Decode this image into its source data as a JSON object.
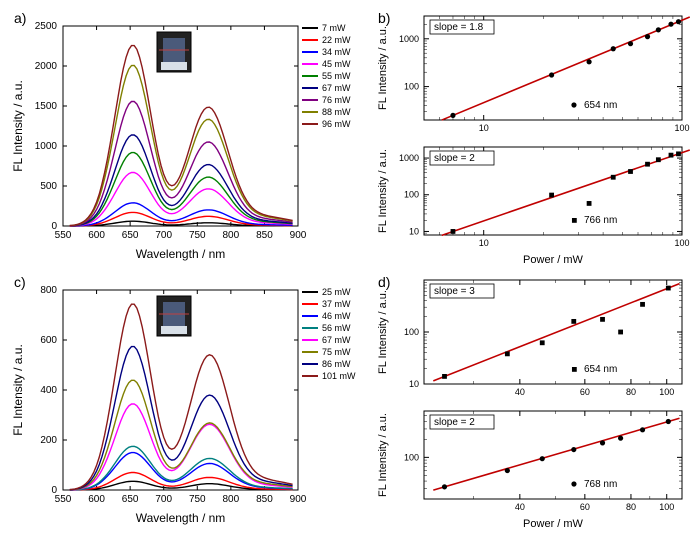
{
  "panels": {
    "a": {
      "label": "a)",
      "type": "line-spectrum",
      "xlim": [
        550,
        900
      ],
      "xtick_step": 50,
      "ylim": [
        0,
        2500
      ],
      "ytick_step": 500,
      "xlabel": "Wavelength / nm",
      "ylabel": "FL Intensity / a.u.",
      "background_color": "#ffffff",
      "axis_color": "#000000",
      "label_fontsize": 12,
      "tick_fontsize": 10,
      "inset_image": true,
      "series": [
        {
          "name": "7 mW",
          "color": "#000000",
          "peak1": 60,
          "peak2": 40
        },
        {
          "name": "22 mW",
          "color": "#ff0000",
          "peak1": 170,
          "peak2": 120
        },
        {
          "name": "34 mW",
          "color": "#0000ff",
          "peak1": 290,
          "peak2": 200
        },
        {
          "name": "45 mW",
          "color": "#ff00ff",
          "peak1": 670,
          "peak2": 460
        },
        {
          "name": "55 mW",
          "color": "#008000",
          "peak1": 920,
          "peak2": 605
        },
        {
          "name": "67 mW",
          "color": "#000080",
          "peak1": 1140,
          "peak2": 760
        },
        {
          "name": "76 mW",
          "color": "#800080",
          "peak1": 1560,
          "peak2": 1040
        },
        {
          "name": "88 mW",
          "color": "#808000",
          "peak1": 2010,
          "peak2": 1320
        },
        {
          "name": "96 mW",
          "color": "#8b1a1a",
          "peak1": 2260,
          "peak2": 1470
        }
      ],
      "peak1_x": 654,
      "peak2_x": 766
    },
    "b": {
      "label": "b)",
      "type": "loglog-pair",
      "xlabel": "Power / mW",
      "ylabel": "FL Intensity / a.u.",
      "xlim": [
        5,
        100
      ],
      "plots": [
        {
          "slope_label": "slope = 1.8",
          "wavelength_label": "654 nm",
          "marker": "circle",
          "ylim": [
            20,
            3000
          ],
          "yticks": [
            100,
            1000
          ],
          "xticks": [
            10,
            100
          ],
          "fit_color": "#c00000",
          "marker_color": "#000000",
          "points": [
            {
              "x": 7,
              "y": 25
            },
            {
              "x": 22,
              "y": 175
            },
            {
              "x": 34,
              "y": 330
            },
            {
              "x": 45,
              "y": 620
            },
            {
              "x": 55,
              "y": 790
            },
            {
              "x": 67,
              "y": 1110
            },
            {
              "x": 76,
              "y": 1540
            },
            {
              "x": 88,
              "y": 2020
            },
            {
              "x": 96,
              "y": 2280
            }
          ]
        },
        {
          "slope_label": "slope = 2",
          "wavelength_label": "766 nm",
          "marker": "square",
          "ylim": [
            8,
            2000
          ],
          "yticks": [
            10,
            100,
            1000
          ],
          "xticks": [
            10,
            100
          ],
          "fit_color": "#c00000",
          "marker_color": "#000000",
          "points": [
            {
              "x": 7,
              "y": 10
            },
            {
              "x": 22,
              "y": 98
            },
            {
              "x": 34,
              "y": 58
            },
            {
              "x": 45,
              "y": 300
            },
            {
              "x": 55,
              "y": 430
            },
            {
              "x": 67,
              "y": 680
            },
            {
              "x": 76,
              "y": 900
            },
            {
              "x": 88,
              "y": 1200
            },
            {
              "x": 96,
              "y": 1300
            }
          ]
        }
      ]
    },
    "c": {
      "label": "c)",
      "type": "line-spectrum",
      "xlim": [
        550,
        900
      ],
      "xtick_step": 50,
      "ylim": [
        0,
        800
      ],
      "ytick_step": 200,
      "xlabel": "Wavelength / nm",
      "ylabel": "FL Intensity / a.u.",
      "background_color": "#ffffff",
      "axis_color": "#000000",
      "label_fontsize": 12,
      "tick_fontsize": 10,
      "inset_image": true,
      "series": [
        {
          "name": "25 mW",
          "color": "#000000",
          "peak1": 35,
          "peak2": 25
        },
        {
          "name": "37 mW",
          "color": "#ff0000",
          "peak1": 70,
          "peak2": 50
        },
        {
          "name": "46 mW",
          "color": "#0000ff",
          "peak1": 150,
          "peak2": 105
        },
        {
          "name": "56 mW",
          "color": "#008080",
          "peak1": 175,
          "peak2": 125
        },
        {
          "name": "67 mW",
          "color": "#ff00ff",
          "peak1": 345,
          "peak2": 260
        },
        {
          "name": "75 mW",
          "color": "#808000",
          "peak1": 440,
          "peak2": 265
        },
        {
          "name": "86 mW",
          "color": "#000080",
          "peak1": 575,
          "peak2": 375
        },
        {
          "name": "101 mW",
          "color": "#8b1a1a",
          "peak1": 745,
          "peak2": 535
        }
      ],
      "peak1_x": 654,
      "peak2_x": 768
    },
    "d": {
      "label": "d)",
      "type": "loglog-pair",
      "xlabel": "Power / mW",
      "ylabel": "FL Intensity / a.u.",
      "xlim": [
        22,
        110
      ],
      "plots": [
        {
          "slope_label": "slope = 3",
          "wavelength_label": "654 nm",
          "marker": "square",
          "ylim": [
            10,
            1000
          ],
          "yticks": [
            10,
            100
          ],
          "xticks": [
            40,
            60,
            80,
            100
          ],
          "fit_color": "#c00000",
          "marker_color": "#000000",
          "points": [
            {
              "x": 25,
              "y": 14
            },
            {
              "x": 37,
              "y": 38
            },
            {
              "x": 46,
              "y": 62
            },
            {
              "x": 56,
              "y": 160
            },
            {
              "x": 67,
              "y": 175
            },
            {
              "x": 75,
              "y": 100
            },
            {
              "x": 86,
              "y": 340
            },
            {
              "x": 101,
              "y": 700
            }
          ]
        },
        {
          "slope_label": "slope = 2",
          "wavelength_label": "768 nm",
          "marker": "circle",
          "ylim": [
            20,
            600
          ],
          "yticks": [
            100
          ],
          "xticks": [
            40,
            60,
            80,
            100
          ],
          "fit_color": "#c00000",
          "marker_color": "#000000",
          "points": [
            {
              "x": 25,
              "y": 32
            },
            {
              "x": 37,
              "y": 60
            },
            {
              "x": 46,
              "y": 95
            },
            {
              "x": 56,
              "y": 135
            },
            {
              "x": 67,
              "y": 175
            },
            {
              "x": 75,
              "y": 210
            },
            {
              "x": 86,
              "y": 290
            },
            {
              "x": 101,
              "y": 400
            }
          ]
        }
      ]
    }
  }
}
